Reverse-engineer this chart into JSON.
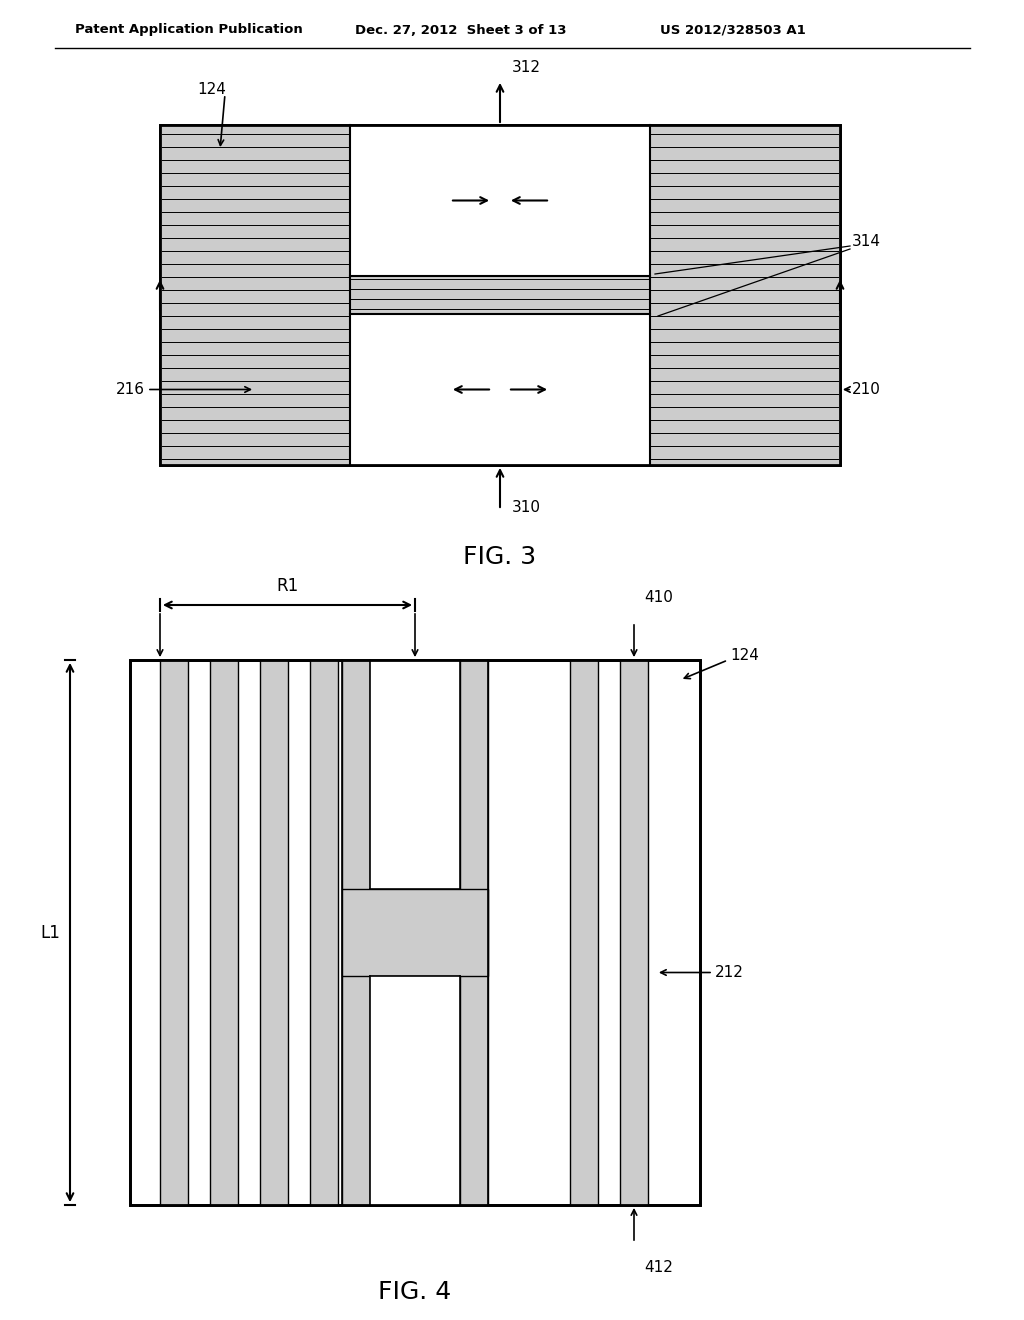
{
  "background_color": "#ffffff",
  "header_left": "Patent Application Publication",
  "header_center": "Dec. 27, 2012  Sheet 3 of 13",
  "header_right": "US 2012/328503 A1",
  "fig3_label": "FIG. 3",
  "fig4_label": "FIG. 4",
  "line_color": "#000000",
  "stripe_color": "#cccccc",
  "white": "#ffffff"
}
